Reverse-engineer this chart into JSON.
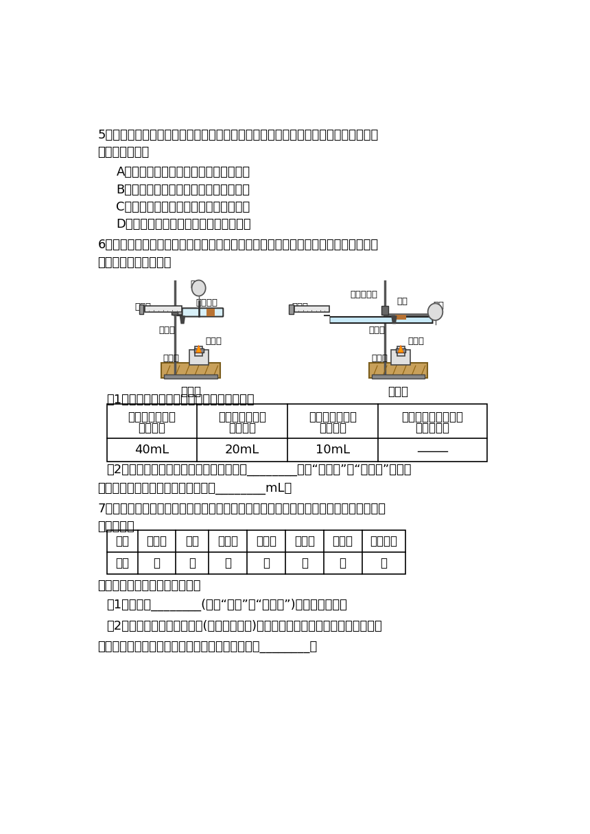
{
  "bg_color": "#ffffff",
  "text_color": "#000000",
  "q5_line1": "5．人类的生产和生活都离不开水，地球上的水通过水循环不断地被利用。下列描述正",
  "q5_line2": "确的是（　　）",
  "q5_A": "A．海洋水可以通过水循环转化为湖泊水",
  "q5_B": "B．地表径流水量一定与植物蔒腾量相等",
  "q5_C": "C．水循环的环节只有蔒发、凝结和降水",
  "q5_D": "D．人类直接利用最多的水资源是海洋水",
  "q6_line1": "6．实验是科学探究的重要方法，如图是测定空气中氧气含量实验的两套装置图，请结",
  "q6_line2": "合图示回答有关问题。",
  "q6_sub1": "（1）根据下表提供的实验数据，完成下表。",
  "q6_h1_line1": "确质玻璃管中空",
  "q6_h1_line2": "气的体积",
  "q6_h2_line1": "反应前注射器中",
  "q6_h2_line2": "气体体积",
  "q6_h3_line1": "反应后注射器中",
  "q6_h3_line2": "气体体积",
  "q6_h4_line1": "实验测得空气中氧气",
  "q6_h4_line2": "的体积分数",
  "q6_d1": "40mL",
  "q6_d2": "20mL",
  "q6_d3": "10mL",
  "q6_d4": "",
  "q6_sub2_line1": "（2）装置一和装置二中气球的位置不同，________（填“装置一”或“装置二”）更合",
  "q6_sub2_line2": "理，反应前注射器内空气体积至少为________mL。",
  "q7_line1": "7．某同学把自制的一种黄色花汁分别滴加到下列不同的试剂中，并记录观察到的现象，",
  "q7_line2": "如表所示。",
  "q7_h0": "试剂",
  "q7_h1": "稀盐酸",
  "q7_h2": "食醋",
  "q7_h3": "蔗糖水",
  "q7_h4": "蒸馏水",
  "q7_h5": "肥皂水",
  "q7_h6": "石灰水",
  "q7_h7": "烧碱溶液",
  "q7_d0": "颜色",
  "q7_d1": "红",
  "q7_d2": "红",
  "q7_d3": "黄",
  "q7_d4": "黄",
  "q7_d5": "绿",
  "q7_d6": "绿",
  "q7_d7": "绿",
  "q7_sub1": "请分析表格，并回答下列问题：",
  "q7_sub2": "（1）该花汁________(选填“可以”或“不可以”)作酸碱指示剂。",
  "q7_sub3_line1": "（2）蚊子叮咋人时注入蚁酸(具有酸的性质)，会使皮肤红肿、痛痒。要缓解这种症",
  "q7_sub3_line2": "状，简易可行的办法是在叮咋处涂抑上述试剂中的________。"
}
